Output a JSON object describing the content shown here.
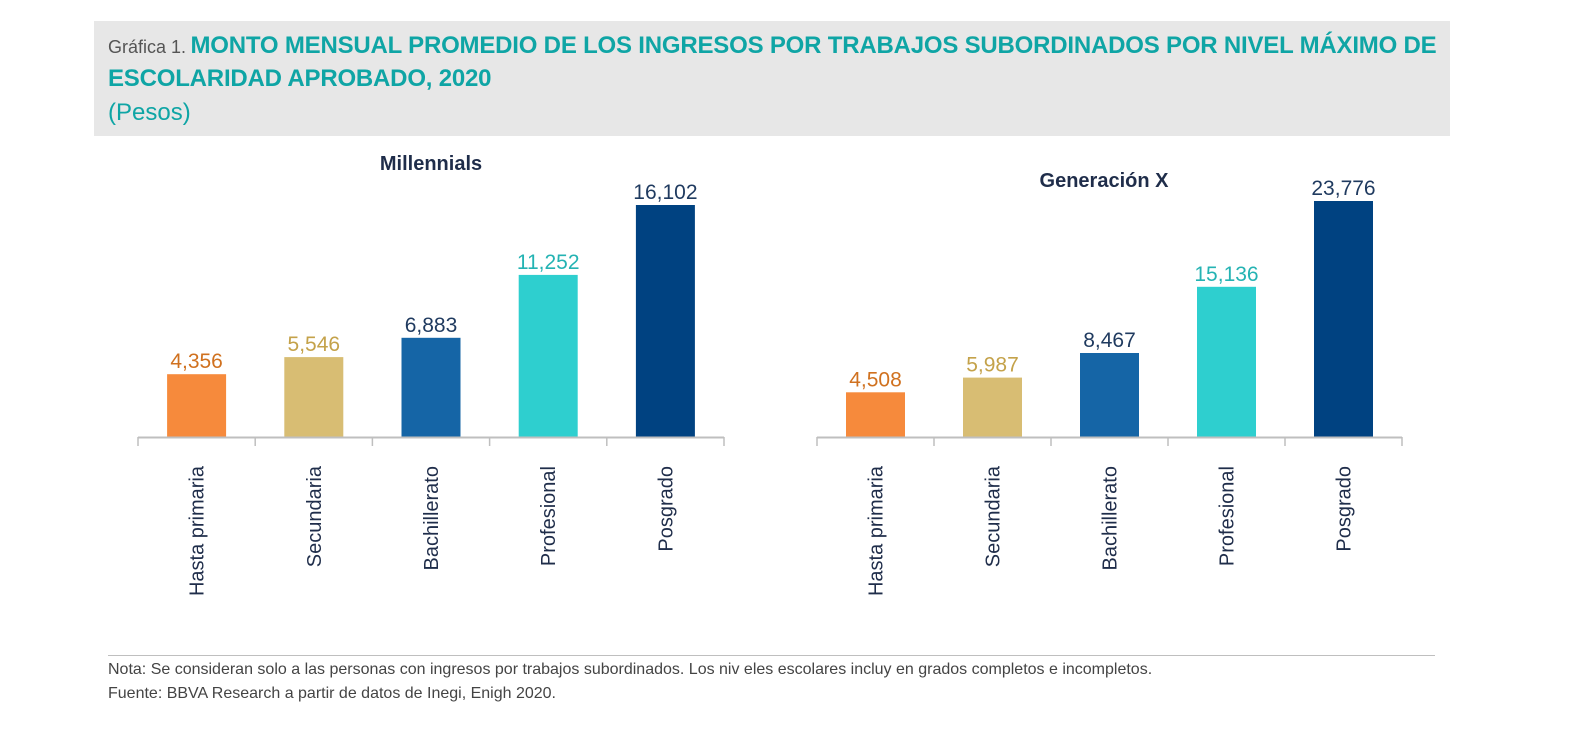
{
  "header": {
    "prefix": "Gráfica 1.",
    "title": "MONTO MENSUAL PROMEDIO DE LOS INGRESOS POR TRABAJOS SUBORDINADOS POR NIVEL MÁXIMO DE ESCOLARIDAD APROBADO, 2020",
    "units": "(Pesos)"
  },
  "colors": {
    "title": "#0fa5a5",
    "axis": "#bfbfbf",
    "category_label": "#1f2d4a",
    "panel_title": "#1f2d4a"
  },
  "chart_data": [
    {
      "type": "bar",
      "title": "Millennials",
      "categories": [
        "Hasta primaria",
        "Secundaria",
        "Bachillerato",
        "Profesional",
        "Posgrado"
      ],
      "values": [
        4356,
        5546,
        6883,
        11252,
        16102
      ],
      "value_labels": [
        "4,356",
        "5,546",
        "6,883",
        "11,252",
        "16,102"
      ],
      "colors": [
        "#f68a3c",
        "#d8bd73",
        "#1565a6",
        "#2ecfcf",
        "#004281"
      ],
      "label_colors": [
        "#d0711f",
        "#c4a24a",
        "#1f3a5f",
        "#24b3b3",
        "#1f3a5f"
      ],
      "ylim": [
        0,
        16102
      ],
      "xlabel": "",
      "ylabel": ""
    },
    {
      "type": "bar",
      "title": "Generación X",
      "categories": [
        "Hasta primaria",
        "Secundaria",
        "Bachillerato",
        "Profesional",
        "Posgrado"
      ],
      "values": [
        4508,
        5987,
        8467,
        15136,
        23776
      ],
      "value_labels": [
        "4,508",
        "5,987",
        "8,467",
        "15,136",
        "23,776"
      ],
      "colors": [
        "#f68a3c",
        "#d8bd73",
        "#1565a6",
        "#2ecfcf",
        "#004281"
      ],
      "label_colors": [
        "#d0711f",
        "#c4a24a",
        "#1f3a5f",
        "#24b3b3",
        "#1f3a5f"
      ],
      "ylim": [
        0,
        23776
      ],
      "xlabel": "",
      "ylabel": ""
    }
  ],
  "footer": {
    "note": "Nota: Se consideran solo a las personas con ingresos por trabajos subordinados. Los niv eles escolares incluy en grados completos e incompletos.",
    "source": "Fuente: BBVA Research a partir de datos de Inegi, Enigh 2020."
  }
}
